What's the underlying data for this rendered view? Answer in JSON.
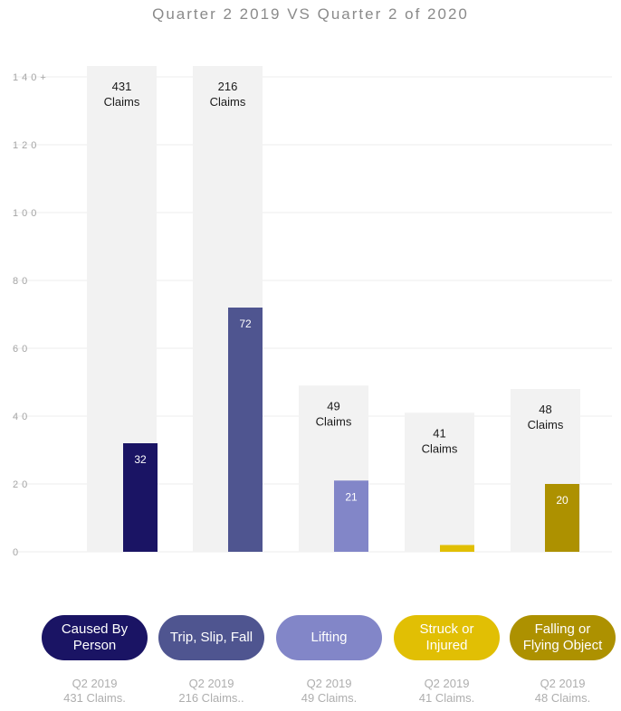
{
  "chart_data": {
    "type": "bar",
    "title": "Quarter 2 2019 VS Quarter 2 of 2020",
    "y_ticks": [
      "0",
      "20",
      "40",
      "60",
      "80",
      "100",
      "120",
      "140+"
    ],
    "ylim": [
      0,
      140
    ],
    "grid": true,
    "categories": [
      {
        "name": [
          "Caused By",
          "Person"
        ],
        "q2_2019_claims": 431,
        "q2_2019_display": 140,
        "q2_2019_label": [
          "431",
          "Claims"
        ],
        "q2_2020": 32,
        "q2_2020_label": "32",
        "color": "#1a1464",
        "text_color": "#ffffff",
        "caption": [
          "Q2 2019",
          "431 Claims."
        ]
      },
      {
        "name": [
          "Trip, Slip, Fall"
        ],
        "q2_2019_claims": 216,
        "q2_2019_display": 140,
        "q2_2019_label": [
          "216",
          "Claims"
        ],
        "q2_2020": 72,
        "q2_2020_label": "72",
        "color": "#4f5590",
        "text_color": "#ffffff",
        "caption": [
          "Q2 2019",
          "216 Claims.."
        ]
      },
      {
        "name": [
          "Lifting"
        ],
        "q2_2019_claims": 49,
        "q2_2019_display": 49,
        "q2_2019_label": [
          "49",
          "Claims"
        ],
        "q2_2020": 21,
        "q2_2020_label": "21",
        "color": "#8286c8",
        "text_color": "#ffffff",
        "caption": [
          "Q2 2019",
          "49 Claims."
        ]
      },
      {
        "name": [
          "Struck or",
          "Injured"
        ],
        "q2_2019_claims": 41,
        "q2_2019_display": 41,
        "q2_2019_label": [
          "41",
          "Claims"
        ],
        "q2_2020": 2,
        "q2_2020_label": "",
        "color": "#e1bf04",
        "text_color": "#ffffff",
        "caption": [
          "Q2 2019",
          "41 Claims."
        ]
      },
      {
        "name": [
          "Falling or",
          "Flying Object"
        ],
        "q2_2019_claims": 48,
        "q2_2019_display": 48,
        "q2_2019_label": [
          "48",
          "Claims"
        ],
        "q2_2020": 20,
        "q2_2020_label": "20",
        "color": "#ad9100",
        "text_color": "#ffffff",
        "caption": [
          "Q2 2019",
          "48 Claims."
        ]
      }
    ]
  }
}
